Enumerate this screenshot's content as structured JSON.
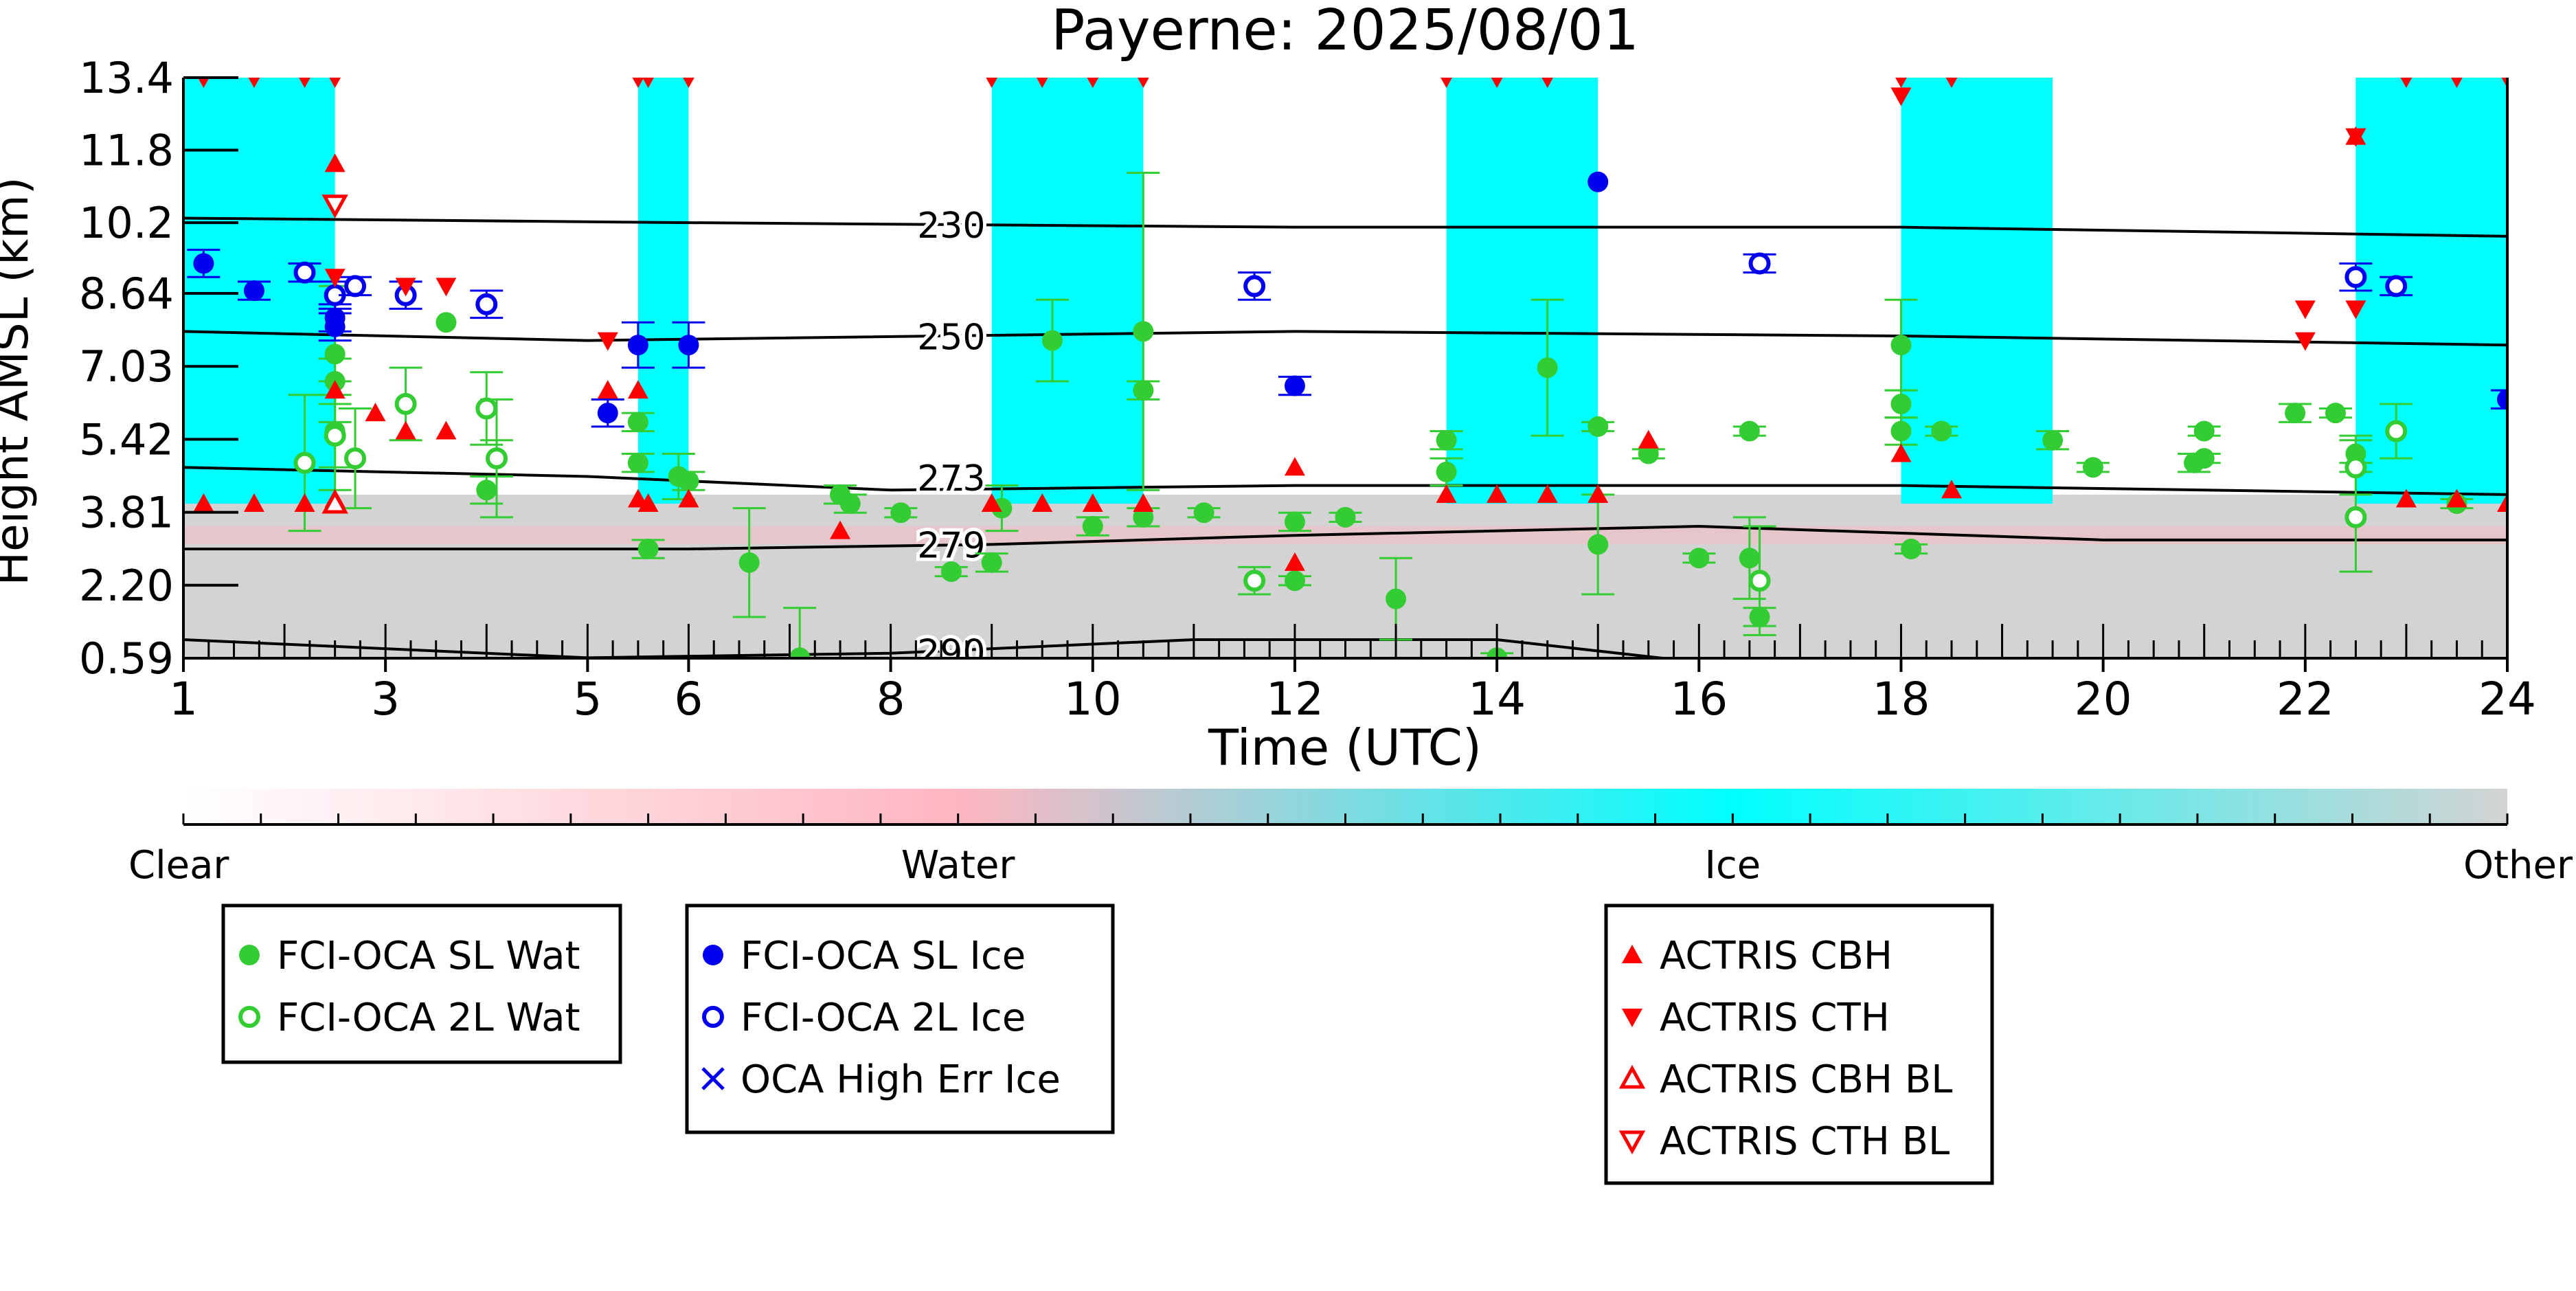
{
  "chart_data": {
    "type": "scatter",
    "title": "Payerne: 2025/08/01",
    "xlabel": "Time (UTC)",
    "ylabel": "Height AMSL (km)",
    "xlim": [
      1,
      24
    ],
    "ylim": [
      0.59,
      13.4
    ],
    "xticks": [
      1,
      3,
      5,
      6,
      8,
      10,
      12,
      14,
      16,
      18,
      20,
      22,
      24
    ],
    "xtick_labels": [
      "1",
      "3",
      "5",
      "6",
      "8",
      "10",
      "12",
      "14",
      "16",
      "18",
      "20",
      "22",
      "24"
    ],
    "yticks": [
      0.59,
      2.2,
      3.81,
      5.42,
      7.03,
      8.64,
      10.2,
      11.8,
      13.4
    ],
    "ytick_labels": [
      "0.59",
      "2.20",
      "3.81",
      "5.42",
      "7.03",
      "8.64",
      "10.2",
      "11.8",
      "13.4"
    ],
    "grid": false,
    "colorbar": {
      "labels": [
        "Clear",
        "Water",
        "Ice",
        "Other"
      ],
      "colors": [
        "#ffffff",
        "#ffb6c1",
        "#00ffff",
        "#d3d3d3"
      ]
    },
    "background_classes": {
      "ice_blocks": [
        [
          1.0,
          2.5
        ],
        [
          5.5,
          6.0
        ],
        [
          9.0,
          10.5
        ],
        [
          13.5,
          15.0
        ],
        [
          18.0,
          19.5
        ],
        [
          22.5,
          24.0
        ]
      ],
      "ice_block_height_km": [
        4.0,
        13.4
      ],
      "other_top_km": 4.2,
      "colors": {
        "ice": "#00ffff",
        "other": "#d3d3d3",
        "water": "#ffb6c1"
      }
    },
    "isotherms": [
      {
        "label": "230",
        "x": [
          1,
          6,
          12,
          18,
          24
        ],
        "y": [
          10.3,
          10.2,
          10.1,
          10.1,
          9.9
        ]
      },
      {
        "label": "250",
        "x": [
          1,
          5,
          12,
          18,
          24
        ],
        "y": [
          7.8,
          7.6,
          7.8,
          7.7,
          7.5
        ]
      },
      {
        "label": "273",
        "x": [
          1,
          5,
          8,
          12,
          18,
          24
        ],
        "y": [
          4.8,
          4.6,
          4.3,
          4.4,
          4.4,
          4.2
        ]
      },
      {
        "label": "279",
        "x": [
          1,
          6,
          9,
          12,
          16,
          20,
          24
        ],
        "y": [
          3.0,
          3.0,
          3.1,
          3.3,
          3.5,
          3.2,
          3.2
        ]
      },
      {
        "label": "290",
        "x": [
          1,
          5,
          8,
          11,
          14,
          16,
          20,
          24
        ],
        "y": [
          1.0,
          0.6,
          0.7,
          1.0,
          1.0,
          0.5,
          0.4,
          0.3
        ]
      }
    ],
    "series": [
      {
        "name": "FCI-OCA SL Wat",
        "color": "#33cc33",
        "marker": "circle-filled",
        "x": [
          2.5,
          2.5,
          2.5,
          3.6,
          4.0,
          4.1,
          5.5,
          5.5,
          5.6,
          5.9,
          6.0,
          6.6,
          7.1,
          7.5,
          7.6,
          8.1,
          8.6,
          9.0,
          9.1,
          9.6,
          10.0,
          10.5,
          10.5,
          10.5,
          11.1,
          12.0,
          12.0,
          12.5,
          13.0,
          13.5,
          13.5,
          14.0,
          14.5,
          15.0,
          15.0,
          15.5,
          16.0,
          16.5,
          16.5,
          16.6,
          18.0,
          18.0,
          18.0,
          18.1,
          18.4,
          19.5,
          19.9,
          20.9,
          21.0,
          21.0,
          21.9,
          22.3,
          22.5,
          23.5
        ],
        "y": [
          7.3,
          6.7,
          5.6,
          8.0,
          4.3,
          5.0,
          5.8,
          4.9,
          3.0,
          4.6,
          4.5,
          2.7,
          0.6,
          4.2,
          4.0,
          3.8,
          2.5,
          2.7,
          3.9,
          7.6,
          3.5,
          7.8,
          6.5,
          3.7,
          3.8,
          3.6,
          2.3,
          3.7,
          1.9,
          5.4,
          4.7,
          0.6,
          7.0,
          5.7,
          3.1,
          5.1,
          2.8,
          5.6,
          2.8,
          1.5,
          7.5,
          6.2,
          5.6,
          3.0,
          5.6,
          5.4,
          4.8,
          4.9,
          5.0,
          5.6,
          6.0,
          6.0,
          5.1,
          4.0
        ],
        "yerr": [
          1.5,
          0.5,
          0.8,
          0,
          0.3,
          1.3,
          0.2,
          0.2,
          0.2,
          0.5,
          0.2,
          1.2,
          1.1,
          0.2,
          0.2,
          0.1,
          0.1,
          0.2,
          0.5,
          0.9,
          0.2,
          3.5,
          0.2,
          0.2,
          0.1,
          0.2,
          0.1,
          0.1,
          0.9,
          0.2,
          0.3,
          0.1,
          1.5,
          0.1,
          1.1,
          0.1,
          0.1,
          0.1,
          0.9,
          0.2,
          1.0,
          0.3,
          0.3,
          0.1,
          0.1,
          0.2,
          0.1,
          0.2,
          0.1,
          0.1,
          0.2,
          0.1,
          0.4,
          0.1
        ]
      },
      {
        "name": "FCI-OCA 2L Wat",
        "color": "#33cc33",
        "marker": "circle-open",
        "x": [
          2.2,
          2.5,
          2.7,
          3.2,
          4.0,
          4.1,
          11.6,
          16.6,
          22.5,
          22.5,
          22.9
        ],
        "y": [
          4.9,
          5.5,
          5.0,
          6.2,
          6.1,
          5.0,
          2.3,
          2.3,
          3.7,
          4.8,
          5.6
        ],
        "yerr": [
          1.5,
          1.2,
          1.1,
          0.8,
          0.8,
          0.4,
          0.3,
          1.2,
          1.2,
          0.6,
          0.6
        ]
      },
      {
        "name": "FCI-OCA SL Ice",
        "color": "#0000ee",
        "marker": "circle-filled",
        "x": [
          1.2,
          1.7,
          2.5,
          2.5,
          5.2,
          5.5,
          6.0,
          12.0,
          15.0,
          24.0
        ],
        "y": [
          9.3,
          8.7,
          8.1,
          7.9,
          6.0,
          7.5,
          7.5,
          6.6,
          11.1,
          6.3
        ],
        "yerr": [
          0.3,
          0.2,
          0.3,
          0.3,
          0.3,
          0.5,
          0.5,
          0.2,
          0,
          0.2
        ]
      },
      {
        "name": "FCI-OCA 2L Ice",
        "color": "#0000ee",
        "marker": "circle-open",
        "x": [
          2.2,
          2.5,
          2.7,
          3.2,
          4.0,
          11.6,
          16.6,
          22.5,
          22.9
        ],
        "y": [
          9.1,
          8.6,
          8.8,
          8.6,
          8.4,
          8.8,
          9.3,
          9.0,
          8.8
        ],
        "yerr": [
          0.2,
          0.3,
          0.2,
          0.3,
          0.3,
          0.3,
          0.2,
          0.3,
          0.2
        ]
      },
      {
        "name": "OCA High Err Ice",
        "color": "#0000ee",
        "marker": "x",
        "x": [],
        "y": []
      },
      {
        "name": "ACTRIS CBH",
        "color": "#ff0000",
        "marker": "triangle-up-filled",
        "x": [
          1.2,
          1.7,
          2.2,
          2.5,
          2.5,
          2.5,
          2.9,
          3.2,
          3.6,
          5.2,
          5.5,
          5.5,
          5.6,
          6.0,
          7.5,
          9.0,
          9.5,
          10.0,
          10.5,
          12.0,
          12.0,
          13.5,
          14.0,
          14.5,
          15.0,
          15.5,
          18.0,
          18.5,
          22.5,
          23.0,
          23.5,
          24.0
        ],
        "y": [
          4.0,
          4.0,
          4.0,
          11.5,
          6.5,
          4.1,
          6.0,
          5.6,
          5.6,
          6.5,
          6.5,
          4.1,
          4.0,
          4.1,
          3.4,
          4.0,
          4.0,
          4.0,
          4.0,
          2.7,
          4.8,
          4.2,
          4.2,
          4.2,
          4.2,
          5.4,
          5.1,
          4.3,
          12.1,
          4.1,
          4.1,
          4.0
        ]
      },
      {
        "name": "ACTRIS CTH",
        "color": "#ff0000",
        "marker": "triangle-down-filled",
        "x": [
          1.2,
          1.7,
          2.2,
          2.5,
          2.5,
          3.2,
          3.6,
          5.2,
          5.5,
          5.6,
          6.0,
          9.0,
          9.5,
          10.0,
          10.5,
          13.5,
          14.0,
          14.5,
          18.0,
          18.0,
          18.5,
          22.0,
          22.0,
          22.5,
          22.5,
          23.0,
          23.5,
          24.0
        ],
        "y": [
          13.4,
          13.4,
          13.4,
          13.4,
          9.0,
          8.8,
          8.8,
          7.6,
          13.4,
          13.4,
          13.4,
          13.4,
          13.4,
          13.4,
          13.4,
          13.4,
          13.4,
          13.4,
          13.4,
          13.0,
          13.4,
          7.6,
          8.3,
          8.3,
          12.1,
          13.4,
          13.4,
          13.4
        ]
      },
      {
        "name": "ACTRIS CBH BL",
        "color": "#ff0000",
        "marker": "triangle-up-open",
        "x": [
          2.5
        ],
        "y": [
          4.0
        ]
      },
      {
        "name": "ACTRIS CTH BL",
        "color": "#ff0000",
        "marker": "triangle-down-open",
        "x": [
          2.5
        ],
        "y": [
          10.6
        ]
      }
    ]
  }
}
